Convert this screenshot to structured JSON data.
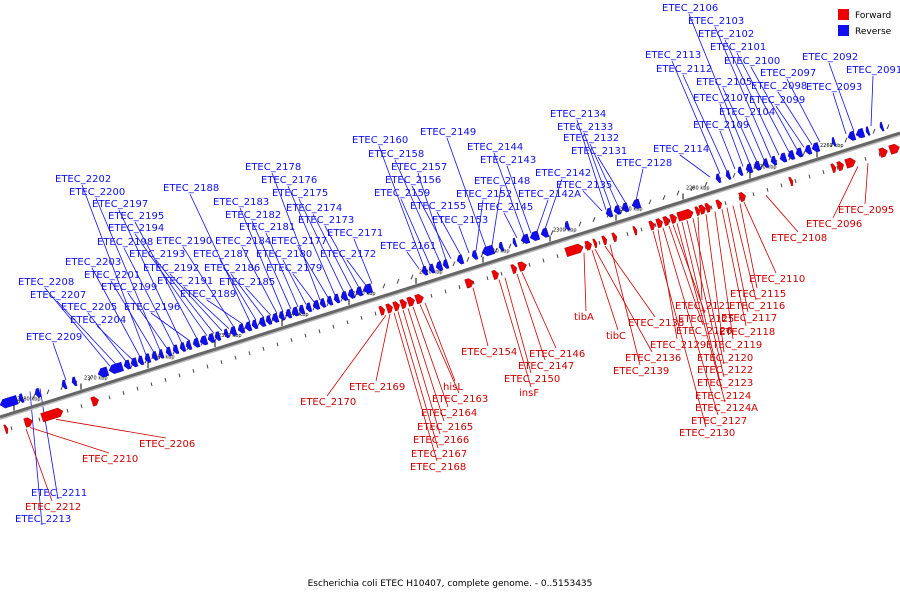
{
  "caption": "Escherichia coli ETEC H10407, complete genome. - 0..5153435",
  "legend": [
    {
      "label": "Forward",
      "color": "#ee0000"
    },
    {
      "label": "Reverse",
      "color": "#1010ee"
    }
  ],
  "colors": {
    "forward": "#ee0000",
    "reverse": "#1010ee",
    "backbone": "#555555",
    "leader_forward": "#cc0000",
    "leader_reverse": "#1010ee"
  },
  "ticks": [
    "2260 kbp",
    "2270 kbp",
    "2280 kbp",
    "2290 kbp",
    "2300 kbp",
    "2310 kbp",
    "2320 kbp",
    "2330 kbp",
    "2340 kbp",
    "2350 kbp",
    "2360 kbp",
    "2370 kbp",
    "2380 kbp"
  ],
  "reverse_labels": [
    "ETEC_2091",
    "ETEC_2092",
    "ETEC_2093",
    "ETEC_2097",
    "ETEC_2098",
    "ETEC_2099",
    "ETEC_2100",
    "ETEC_2101",
    "ETEC_2102",
    "ETEC_2103",
    "ETEC_2104",
    "ETEC_2105",
    "ETEC_2106",
    "ETEC_2107",
    "ETEC_2109",
    "ETEC_2112",
    "ETEC_2113",
    "ETEC_2114",
    "ETEC_2128",
    "ETEC_2131",
    "ETEC_2132",
    "ETEC_2133",
    "ETEC_2134",
    "ETEC_2135",
    "ETEC_2142",
    "ETEC_2142A",
    "ETEC_2143",
    "ETEC_2144",
    "ETEC_2145",
    "ETEC_2148",
    "ETEC_2149",
    "ETEC_2152",
    "ETEC_2153",
    "ETEC_2155",
    "ETEC_2156",
    "ETEC_2157",
    "ETEC_2158",
    "ETEC_2159",
    "ETEC_2160",
    "ETEC_2161",
    "ETEC_2171",
    "ETEC_2172",
    "ETEC_2173",
    "ETEC_2174",
    "ETEC_2175",
    "ETEC_2176",
    "ETEC_2177",
    "ETEC_2178",
    "ETEC_2179",
    "ETEC_2180",
    "ETEC_2181",
    "ETEC_2182",
    "ETEC_2183",
    "ETEC_2184",
    "ETEC_2185",
    "ETEC_2186",
    "ETEC_2187",
    "ETEC_2188",
    "ETEC_2189",
    "ETEC_2190",
    "ETEC_2191",
    "ETEC_2192",
    "ETEC_2193",
    "ETEC_2194",
    "ETEC_2195",
    "ETEC_2196",
    "ETEC_2197",
    "ETEC_2198",
    "ETEC_2199",
    "ETEC_2200",
    "ETEC_2201",
    "ETEC_2202",
    "ETEC_2203",
    "ETEC_2204",
    "ETEC_2205",
    "ETEC_2207",
    "ETEC_2208",
    "ETEC_2209",
    "ETEC_2211",
    "ETEC_2213"
  ],
  "forward_labels": [
    "ETEC_2095",
    "ETEC_2096",
    "ETEC_2108",
    "ETEC_2110",
    "ETEC_2115",
    "ETEC_2116",
    "ETEC_2117",
    "ETEC_2118",
    "ETEC_2119",
    "ETEC_2120",
    "ETEC_2121",
    "ETEC_2122",
    "ETEC_2123",
    "ETEC_2124",
    "ETEC_2124A",
    "ETEC_2125",
    "ETEC_2126",
    "ETEC_2127",
    "ETEC_2129",
    "ETEC_2130",
    "tibA",
    "ETEC_2138",
    "tibC",
    "ETEC_2136",
    "ETEC_2139",
    "ETEC_2146",
    "ETEC_2147",
    "ETEC_2150",
    "insF",
    "ETEC_2154",
    "hisL",
    "ETEC_2163",
    "ETEC_2164",
    "ETEC_2165",
    "ETEC_2166",
    "ETEC_2167",
    "ETEC_2168",
    "ETEC_2169",
    "ETEC_2170",
    "ETEC_2206",
    "ETEC_2210",
    "ETEC_2212"
  ]
}
